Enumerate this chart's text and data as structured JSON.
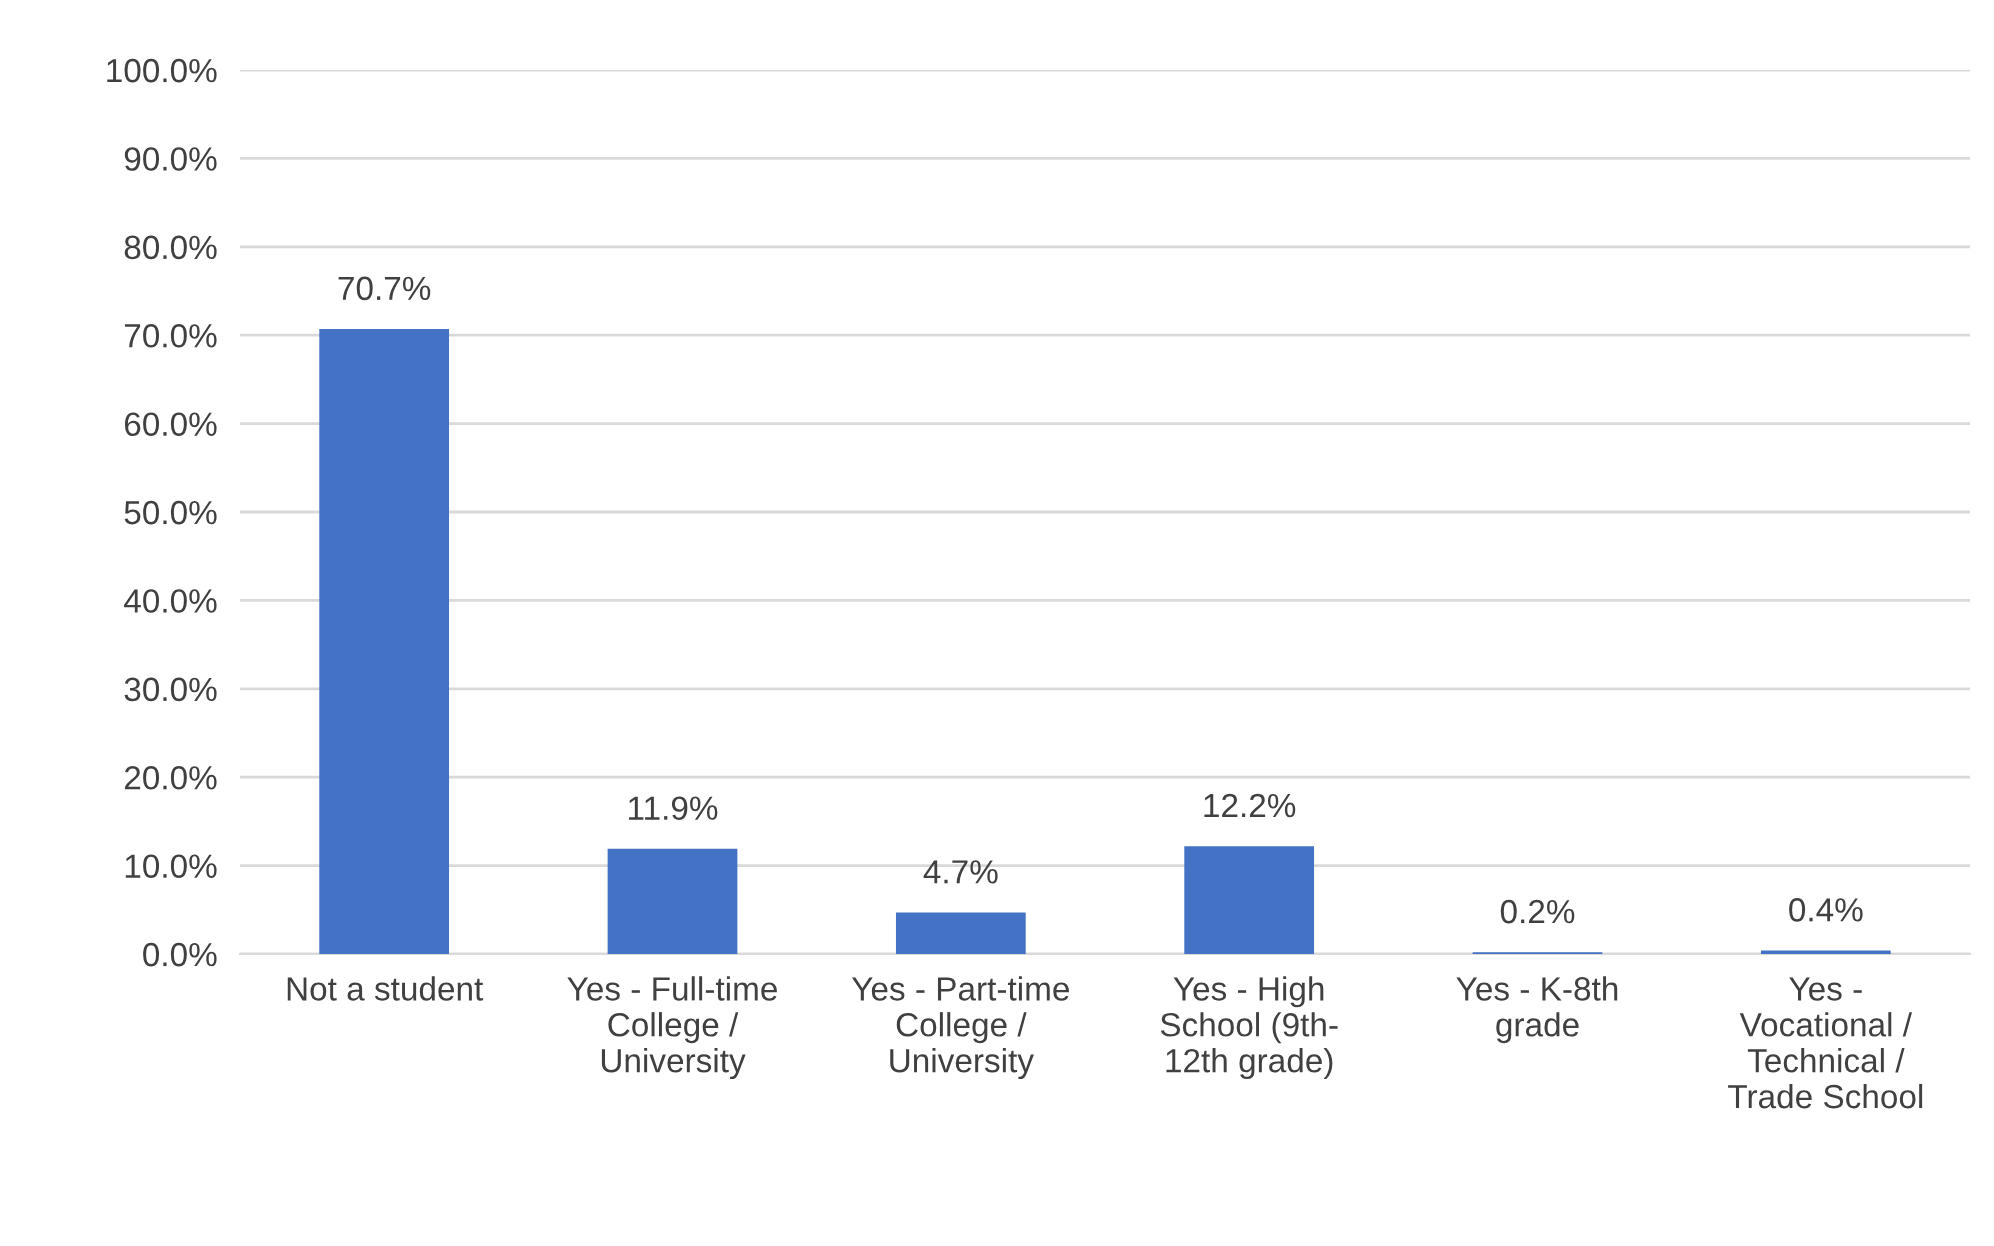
{
  "chart_data": {
    "type": "bar",
    "categories": [
      "Not a student",
      "Yes - Full-time\nCollege /\nUniversity",
      "Yes - Part-time\nCollege /\nUniversity",
      "Yes - High\nSchool (9th-\n12th grade)",
      "Yes - K-8th\ngrade",
      "Yes -\nVocational /\nTechnical /\nTrade School"
    ],
    "values": [
      70.7,
      11.9,
      4.7,
      12.2,
      0.2,
      0.4
    ],
    "value_labels": [
      "70.7%",
      "11.9%",
      "4.7%",
      "12.2%",
      "0.2%",
      "0.4%"
    ],
    "color": "#4472c4",
    "ylim": [
      0,
      100
    ],
    "yticks": [
      {
        "value": 0,
        "label": "0.0%"
      },
      {
        "value": 10,
        "label": "10.0%"
      },
      {
        "value": 20,
        "label": "20.0%"
      },
      {
        "value": 30,
        "label": "30.0%"
      },
      {
        "value": 40,
        "label": "40.0%"
      },
      {
        "value": 50,
        "label": "50.0%"
      },
      {
        "value": 60,
        "label": "60.0%"
      },
      {
        "value": 70,
        "label": "70.0%"
      },
      {
        "value": 80,
        "label": "80.0%"
      },
      {
        "value": 90,
        "label": "90.0%"
      },
      {
        "value": 100,
        "label": "100.0%"
      }
    ],
    "grid": "y"
  }
}
